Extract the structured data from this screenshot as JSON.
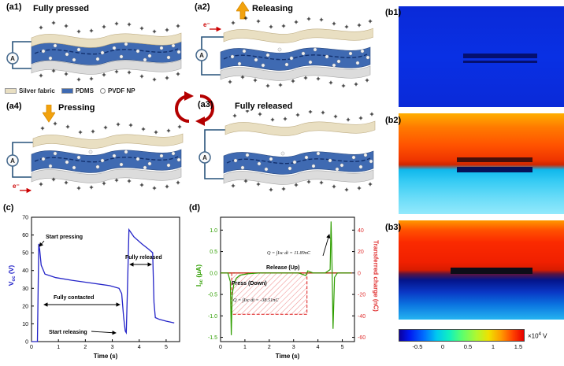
{
  "figure": {
    "panels": {
      "a1": {
        "label": "(a1)",
        "title": "Fully pressed"
      },
      "a2": {
        "label": "(a2)",
        "title": "Releasing"
      },
      "a3": {
        "label": "(a3)",
        "title": "Fully released"
      },
      "a4": {
        "label": "(a4)",
        "title": "Pressing"
      },
      "b1": {
        "label": "(b1)"
      },
      "b2": {
        "label": "(b2)"
      },
      "b3": {
        "label": "(b3)"
      },
      "c": {
        "label": "(c)"
      },
      "d": {
        "label": "(d)"
      }
    },
    "schematic": {
      "ammeter": "A",
      "electron": "e⁻",
      "legend": [
        {
          "label": "Silver fabric",
          "swatch": "#e9dfc2"
        },
        {
          "label": "PDMS",
          "swatch": "#3f6ab2"
        },
        {
          "label": "PVDF NP",
          "swatch": "#ffffff"
        }
      ]
    },
    "colorbar": {
      "ticks": [
        "-0.5",
        "0",
        "0.5",
        "1",
        "1.5"
      ],
      "unit_base": "×10",
      "unit_exp": "4",
      "unit_suffix": " V"
    }
  },
  "chart_data": [
    {
      "id": "c",
      "type": "line",
      "xlabel": "Time (s)",
      "ylabel_main": "V",
      "ylabel_sub": "oc",
      "ylabel_unit": " (V)",
      "xlim": [
        0,
        5.5
      ],
      "xticks": [
        [
          0,
          "0"
        ],
        [
          1,
          "1"
        ],
        [
          2,
          "2"
        ],
        [
          3,
          "3"
        ],
        [
          4,
          "4"
        ],
        [
          5,
          "5"
        ]
      ],
      "axes": {
        "left": {
          "lim": [
            0,
            70
          ],
          "color": "#000000",
          "ticks": [
            [
              0,
              "0"
            ],
            [
              10,
              "10"
            ],
            [
              20,
              "20"
            ],
            [
              30,
              "30"
            ],
            [
              40,
              "40"
            ],
            [
              50,
              "50"
            ],
            [
              60,
              "60"
            ],
            [
              70,
              "70"
            ]
          ]
        }
      },
      "series": [
        {
          "name": "Voc",
          "color": "#2424c8",
          "width": 1.3,
          "x": [
            0,
            0.22,
            0.27,
            0.3,
            0.36,
            0.5,
            0.9,
            1.5,
            2.2,
            2.9,
            3.25,
            3.35,
            3.42,
            3.48,
            3.52,
            3.56,
            3.62,
            3.8,
            4.1,
            4.35,
            4.5,
            4.55,
            4.6,
            4.75,
            5.0,
            5.3
          ],
          "y": [
            0,
            0,
            55,
            52,
            43,
            38,
            36,
            34.5,
            33,
            31.5,
            30,
            27,
            14,
            6,
            5,
            28,
            63,
            59,
            55,
            52,
            50,
            22,
            13.5,
            12.5,
            11.5,
            10.5
          ]
        }
      ],
      "annotations": {
        "start_pressing": "Start pressing",
        "fully_contacted": "Fully contacted",
        "fully_released": "Fully released",
        "start_releasing": "Start releasing"
      }
    },
    {
      "id": "d",
      "type": "line",
      "xlabel": "Time (s)",
      "ylabel_main": "I",
      "ylabel_sub": "sc",
      "ylabel_unit": " (µA)",
      "y2label": "Transferred charge (nC)",
      "xlim": [
        0,
        5.5
      ],
      "xticks": [
        [
          0,
          "0"
        ],
        [
          1,
          "1"
        ],
        [
          2,
          "2"
        ],
        [
          3,
          "3"
        ],
        [
          4,
          "4"
        ],
        [
          5,
          "5"
        ]
      ],
      "axes": {
        "left": {
          "lim": [
            -1.6,
            1.3
          ],
          "color": "#2f9e00",
          "ticks": [
            [
              1.0,
              "1.0"
            ],
            [
              0.5,
              "0.5"
            ],
            [
              0.0,
              "0.0"
            ],
            [
              -0.5,
              "-0.5"
            ],
            [
              -1.0,
              "-1.0"
            ],
            [
              -1.5,
              "-1.5"
            ]
          ]
        },
        "right": {
          "lim": [
            -64,
            52
          ],
          "color": "#e03030",
          "ticks": [
            [
              40,
              "40"
            ],
            [
              20,
              "20"
            ],
            [
              0,
              "0"
            ],
            [
              -20,
              "-20"
            ],
            [
              -40,
              "-40"
            ],
            [
              -60,
              "-60"
            ]
          ]
        }
      },
      "series": [
        {
          "name": "charge-baseline",
          "color": "#a03000",
          "width": 1.3,
          "x": [
            0,
            5.4
          ],
          "y": [
            0,
            0
          ]
        },
        {
          "name": "transferred-charge",
          "color": "#e03030",
          "width": 1.1,
          "dash": "4 2",
          "axis": "right",
          "close": true,
          "fill": "url(#hatch)",
          "x": [
            0.46,
            0.46,
            3.55,
            3.55
          ],
          "y": [
            0,
            -38.51,
            -38.51,
            0
          ]
        },
        {
          "name": "Isc",
          "color": "#2f9e00",
          "width": 1.2,
          "x": [
            0,
            0.3,
            0.4,
            0.44,
            0.48,
            0.55,
            0.65,
            0.8,
            1.1,
            1.6,
            2.4,
            3.2,
            3.5,
            3.58,
            3.8,
            4.3,
            4.5,
            4.54,
            4.58,
            4.62,
            4.68,
            4.8,
            5.1,
            5.35
          ],
          "y": [
            0,
            0,
            -0.2,
            -1.45,
            -0.5,
            -0.25,
            -0.12,
            -0.05,
            -0.02,
            0,
            0,
            0,
            -0.06,
            0.05,
            0,
            0,
            0.08,
            1.2,
            0.1,
            -1.3,
            -0.1,
            0,
            0,
            0
          ]
        }
      ],
      "annotations": {
        "release": "Release (Up)",
        "press": "Press (Down)",
        "q_release": "Q = ∫Isc dt = 11.89nC",
        "q_press": "Q = ∫Isc dt = -38.51nC"
      }
    },
    {
      "id": "b",
      "type": "heatmap",
      "panels": [
        "(b1)",
        "(b2)",
        "(b3)"
      ],
      "colorbar_ticks": [
        "-0.5",
        "0",
        "0.5",
        "1",
        "1.5"
      ],
      "colorbar_unit": "×10^4 V"
    }
  ]
}
